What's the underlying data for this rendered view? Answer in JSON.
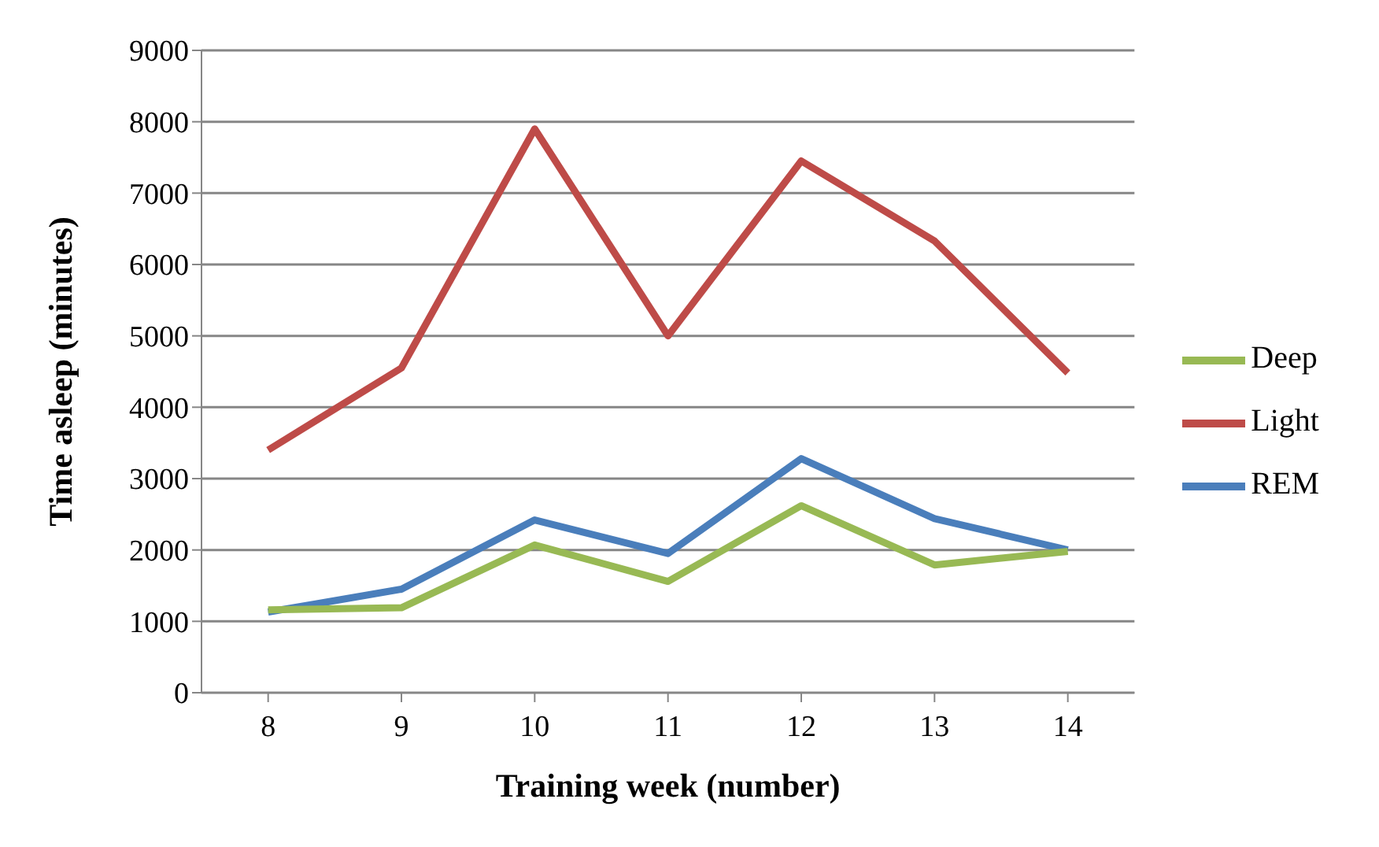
{
  "chart_data": {
    "type": "line",
    "xlabel": "Training week (number)",
    "ylabel": "Time asleep (minutes)",
    "categories": [
      "8",
      "9",
      "10",
      "11",
      "12",
      "13",
      "14"
    ],
    "series": [
      {
        "name": "REM",
        "color": "#4a7ebb",
        "values": [
          1130,
          1450,
          2420,
          1950,
          3280,
          2440,
          2000
        ]
      },
      {
        "name": "Light",
        "color": "#be4b48",
        "values": [
          3400,
          4550,
          7900,
          5000,
          7450,
          6330,
          4480
        ]
      },
      {
        "name": "Deep",
        "color": "#98b954",
        "values": [
          1160,
          1190,
          2070,
          1560,
          2620,
          1790,
          1980
        ]
      }
    ],
    "ylim": [
      0,
      9000
    ],
    "yticks": [
      0,
      1000,
      2000,
      3000,
      4000,
      5000,
      6000,
      7000,
      8000,
      9000
    ],
    "grid": "y",
    "legend": "right",
    "marker": "none",
    "line_style": "solid"
  }
}
